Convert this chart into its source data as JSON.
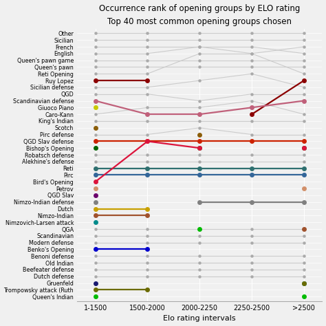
{
  "title": "Occurrence rank of opening groups by ELO rating",
  "subtitle": "Top 40 most common opening groups chosen",
  "xlabel": "Elo rating intervals",
  "x_labels": [
    "1-1500",
    "1500-2000",
    "2000-2250",
    "2250-2500",
    ">2500"
  ],
  "y_labels": [
    "Other",
    "Sicilian",
    "French",
    "English",
    "Queen's pawn game",
    "Queen's pawn",
    "Reti Opening",
    "Ruy Lopez",
    "Sicilian defense",
    "QGD",
    "Scandinavian defense",
    "Giuoco Piano",
    "Caro-Kann",
    "King's Indian",
    "Scotch",
    "Pirc defense",
    "QGD Slav defense",
    "Bishop's Opening",
    "Robatsch defense",
    "Alekhine's defense",
    "Reti",
    "Pirc",
    "Bird's Opening",
    "Petrov",
    "QGD Slav",
    "Nimzo-Indian defense",
    "Dutch",
    "Nimzo-Indian",
    "Nimzovich-Larsen attack",
    "QGA",
    "Scandinavian",
    "Modern defense",
    "Benko's Opening",
    "Benoni defense",
    "Old Indian",
    "Beefeater defense",
    "Dutch defense",
    "Gruenfeld",
    "Trompowsky attack (Ruth",
    "Queen's Indian"
  ],
  "colored_series": [
    {
      "name": "Ruy Lopez",
      "color": "#8B0000",
      "ranks": [
        8,
        8,
        null,
        13,
        8
      ]
    },
    {
      "name": "Scandinavian defense",
      "color": "#c0607a",
      "ranks": [
        11,
        13,
        13,
        12,
        11
      ]
    },
    {
      "name": "Giuoco Piano",
      "color": "#c8c800",
      "ranks": [
        12,
        null,
        null,
        null,
        null
      ]
    },
    {
      "name": "Scotch",
      "color": "#8B5E0A",
      "ranks": [
        15,
        null,
        16,
        null,
        null
      ]
    },
    {
      "name": "QGD Slav defense",
      "color": "#CC2200",
      "ranks": [
        17,
        17,
        17,
        17,
        17
      ]
    },
    {
      "name": "Bishop's Opening",
      "color": "#006400",
      "ranks": [
        18,
        null,
        18,
        null,
        18
      ]
    },
    {
      "name": "Reti",
      "color": "#2F7070",
      "ranks": [
        21,
        21,
        21,
        21,
        21
      ]
    },
    {
      "name": "Pirc",
      "color": "#336699",
      "ranks": [
        22,
        22,
        22,
        22,
        22
      ]
    },
    {
      "name": "Bird's Opening",
      "color": "#DC143C",
      "ranks": [
        23,
        17,
        18,
        null,
        18
      ]
    },
    {
      "name": "Petrov",
      "color": "#D2906A",
      "ranks": [
        24,
        null,
        null,
        null,
        24
      ]
    },
    {
      "name": "QGD Slav",
      "color": "#6B006B",
      "ranks": [
        25,
        null,
        null,
        null,
        null
      ]
    },
    {
      "name": "Nimzo-Indian defense",
      "color": "#808080",
      "ranks": [
        26,
        null,
        26,
        26,
        26
      ]
    },
    {
      "name": "Dutch",
      "color": "#C8A000",
      "ranks": [
        27,
        27,
        null,
        null,
        null
      ]
    },
    {
      "name": "Nimzo-Indian",
      "color": "#A0522D",
      "ranks": [
        28,
        28,
        null,
        null,
        30
      ]
    },
    {
      "name": "Nimzovich-Larsen attack",
      "color": "#008B8B",
      "ranks": [
        29,
        null,
        null,
        null,
        38
      ]
    },
    {
      "name": "Benko's Opening",
      "color": "#0000CD",
      "ranks": [
        33,
        33,
        null,
        null,
        null
      ]
    },
    {
      "name": "Gruenfeld",
      "color": "#191970",
      "ranks": [
        38,
        null,
        null,
        null,
        null
      ]
    },
    {
      "name": "Trompowsky attack (Ruth",
      "color": "#6B6B00",
      "ranks": [
        39,
        39,
        null,
        null,
        38
      ]
    },
    {
      "name": "Queen's Indian",
      "color": "#00BB00",
      "ranks": [
        40,
        null,
        30,
        null,
        40
      ]
    }
  ],
  "all_ranks": [
    [
      1,
      1,
      1,
      1,
      1
    ],
    [
      2,
      2,
      2,
      2,
      2
    ],
    [
      3,
      3,
      3,
      3,
      3
    ],
    [
      4,
      4,
      4,
      4,
      4
    ],
    [
      5,
      5,
      5,
      5,
      5
    ],
    [
      6,
      6,
      6,
      6,
      6
    ],
    [
      7,
      7,
      7,
      7,
      7
    ],
    [
      8,
      8,
      null,
      13,
      8
    ],
    [
      9,
      9,
      9,
      9,
      9
    ],
    [
      10,
      10,
      10,
      10,
      10
    ],
    [
      11,
      13,
      13,
      12,
      11
    ],
    [
      12,
      null,
      null,
      null,
      null
    ],
    [
      13,
      12,
      12,
      11,
      13
    ],
    [
      14,
      14,
      14,
      14,
      14
    ],
    [
      15,
      null,
      16,
      null,
      null
    ],
    [
      16,
      16,
      15,
      16,
      16
    ],
    [
      17,
      17,
      17,
      17,
      17
    ],
    [
      18,
      null,
      18,
      null,
      18
    ],
    [
      19,
      19,
      19,
      19,
      19
    ],
    [
      20,
      20,
      20,
      20,
      20
    ],
    [
      21,
      21,
      21,
      21,
      21
    ],
    [
      22,
      22,
      22,
      22,
      22
    ],
    [
      23,
      17,
      18,
      null,
      18
    ],
    [
      24,
      null,
      null,
      null,
      24
    ],
    [
      25,
      null,
      null,
      null,
      null
    ],
    [
      26,
      null,
      26,
      26,
      26
    ],
    [
      27,
      27,
      null,
      null,
      null
    ],
    [
      28,
      28,
      null,
      null,
      30
    ],
    [
      29,
      null,
      null,
      null,
      38
    ],
    [
      30,
      30,
      30,
      30,
      30
    ],
    [
      31,
      31,
      31,
      31,
      31
    ],
    [
      32,
      32,
      32,
      32,
      32
    ],
    [
      33,
      33,
      null,
      null,
      null
    ],
    [
      34,
      34,
      34,
      34,
      34
    ],
    [
      35,
      35,
      35,
      35,
      35
    ],
    [
      36,
      36,
      36,
      36,
      36
    ],
    [
      37,
      37,
      37,
      37,
      37
    ],
    [
      38,
      null,
      null,
      null,
      null
    ],
    [
      39,
      39,
      null,
      null,
      38
    ],
    [
      40,
      null,
      30,
      null,
      40
    ]
  ],
  "bg_color": "#f0f0f0",
  "gray_dot_color": "#aaaaaa",
  "gray_line_color": "#c8c8c8"
}
